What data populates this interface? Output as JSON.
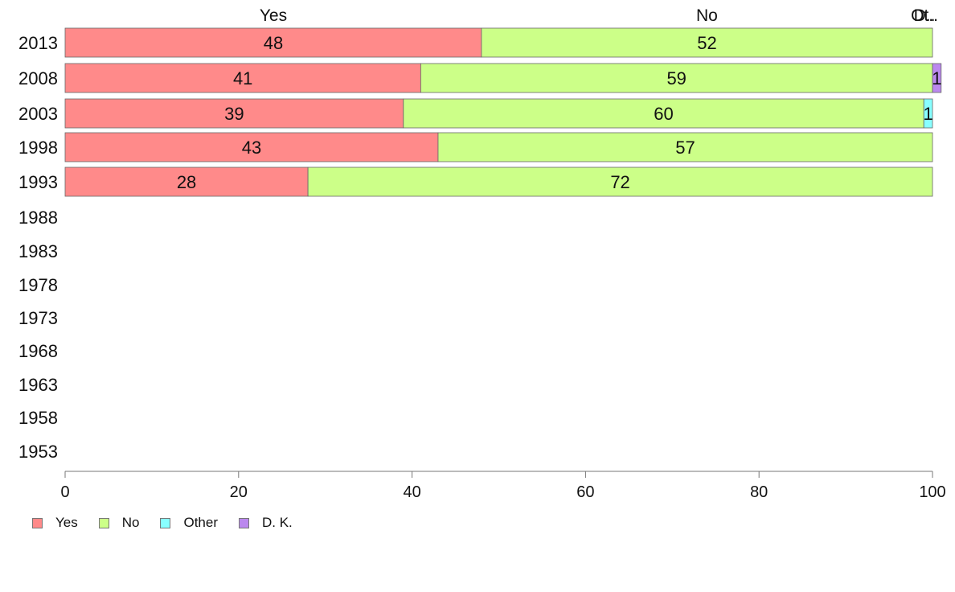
{
  "chart_data": {
    "type": "bar",
    "orientation": "horizontal",
    "stacked": true,
    "categories": [
      "2013",
      "2008",
      "2003",
      "1998",
      "1993",
      "1988",
      "1983",
      "1978",
      "1973",
      "1968",
      "1963",
      "1958",
      "1953"
    ],
    "series": [
      {
        "name": "Yes",
        "color": "#FF8A8A",
        "values": [
          48,
          41,
          39,
          43,
          28,
          null,
          null,
          null,
          null,
          null,
          null,
          null,
          null
        ]
      },
      {
        "name": "No",
        "color": "#CCFF88",
        "values": [
          52,
          59,
          60,
          57,
          72,
          null,
          null,
          null,
          null,
          null,
          null,
          null,
          null
        ]
      },
      {
        "name": "Other",
        "color": "#88FFFF",
        "values": [
          0,
          0,
          1,
          0,
          0,
          null,
          null,
          null,
          null,
          null,
          null,
          null,
          null
        ]
      },
      {
        "name": "D. K.",
        "color": "#BB88EE",
        "values": [
          0,
          1,
          0,
          0,
          0,
          null,
          null,
          null,
          null,
          null,
          null,
          null,
          null
        ]
      }
    ],
    "top_labels": [
      "Yes",
      "No",
      "Ot..",
      "D.."
    ],
    "xlim": [
      0,
      100
    ],
    "xticks": [
      "0",
      "20",
      "40",
      "60",
      "80",
      "100"
    ],
    "legend_position": "bottom-left",
    "grid": false
  }
}
